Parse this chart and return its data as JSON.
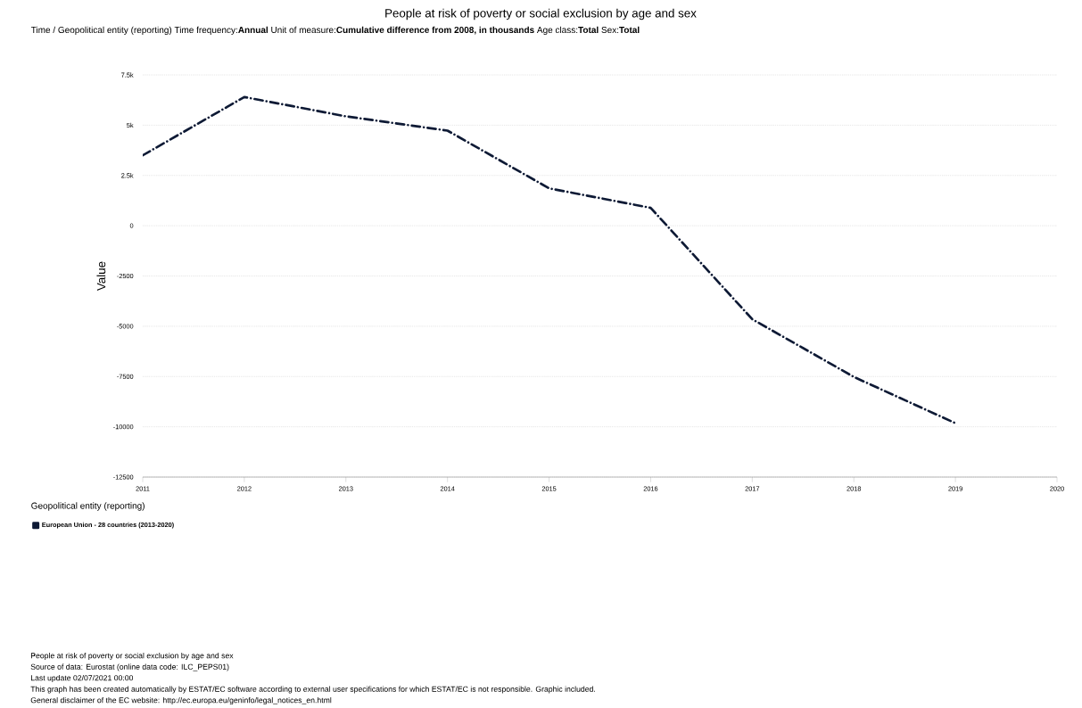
{
  "chart_data": {
    "type": "line",
    "title": "People at risk of poverty or social exclusion by age and sex",
    "subtitle": "Time / Geopolitical entity (reporting)  Time frequency:**Annual**  Unit of measure:**Cumulative difference from 2008, in thousands**  Age class:**Total**  Sex:**Total**",
    "ylabel": "Value",
    "legend_title": "Geopolitical entity (reporting)",
    "x": [
      2011,
      2012,
      2013,
      2014,
      2015,
      2016,
      2017,
      2018,
      2019
    ],
    "series": [
      {
        "name": "European Union - 28 countries (2013-2020)",
        "color": "#0e1a35",
        "values": [
          3500,
          6400,
          5440,
          4730,
          1860,
          890,
          -4650,
          -7520,
          -9820
        ]
      }
    ],
    "xlim": [
      2011,
      2020
    ],
    "xticks": [
      2011,
      2012,
      2013,
      2014,
      2015,
      2016,
      2017,
      2018,
      2019,
      2020
    ],
    "ylim": [
      -12500,
      7500
    ],
    "yticks": [
      -12500,
      -10000,
      -7500,
      -5000,
      -2500,
      0,
      {
        "value": 2500,
        "label": "2.5k"
      },
      {
        "value": 5000,
        "label": "5k"
      },
      {
        "value": 7500,
        "label": "7.5k"
      }
    ],
    "grid": "y",
    "legend": "bottom",
    "marker": "none",
    "line_style": "dashed",
    "annotations": [
      "People at risk of poverty or social exclusion by age and sex",
      "Source of data: Eurostat (online data code: ILC_PEPS01)",
      "Last update 02/07/2021 00:00",
      "This graph has been created automatically by ESTAT/EC software according to external user specifications for which ESTAT/EC is not responsible. Graphic included.",
      "General disclaimer of the EC website: http://ec.europa.eu/geninfo/legal_notices_en.html"
    ]
  }
}
